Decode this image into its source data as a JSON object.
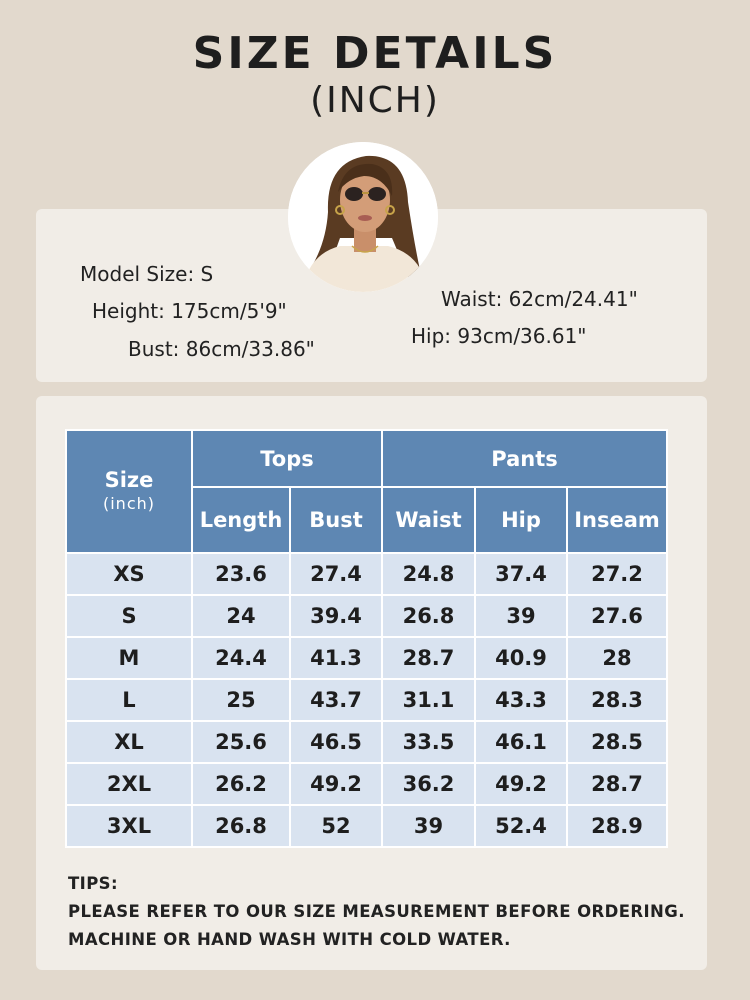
{
  "header": {
    "title": "SIZE DETAILS",
    "subtitle": "(INCH)"
  },
  "model": {
    "avatar_icon": "model-portrait",
    "size": "Model Size: S",
    "height": "Height: 175cm/5'9\"",
    "bust": "Bust: 86cm/33.86\"",
    "waist": "Waist: 62cm/24.41\"",
    "hip": "Hip: 93cm/36.61\""
  },
  "table": {
    "size_label": "Size",
    "size_unit": "(inch)",
    "groups": {
      "tops": "Tops",
      "pants": "Pants"
    },
    "columns": [
      "Length",
      "Bust",
      "Waist",
      "Hip",
      "Inseam"
    ],
    "rows": [
      [
        "XS",
        "23.6",
        "27.4",
        "24.8",
        "37.4",
        "27.2"
      ],
      [
        "S",
        "24",
        "39.4",
        "26.8",
        "39",
        "27.6"
      ],
      [
        "M",
        "24.4",
        "41.3",
        "28.7",
        "40.9",
        "28"
      ],
      [
        "L",
        "25",
        "43.7",
        "31.1",
        "43.3",
        "28.3"
      ],
      [
        "XL",
        "25.6",
        "46.5",
        "33.5",
        "46.1",
        "28.5"
      ],
      [
        "2XL",
        "26.2",
        "49.2",
        "36.2",
        "49.2",
        "28.7"
      ],
      [
        "3XL",
        "26.8",
        "52",
        "39",
        "52.4",
        "28.9"
      ]
    ]
  },
  "tips": {
    "label": "TIPS:",
    "lines": [
      "PLEASE REFER TO OUR SIZE MEASUREMENT BEFORE ORDERING.",
      "MACHINE OR HAND WASH WITH COLD WATER."
    ]
  },
  "colors": {
    "background": "#e2d9cd",
    "card": "#f1ede7",
    "header_blue": "#5e87b3",
    "cell_blue": "#d9e3f0"
  }
}
